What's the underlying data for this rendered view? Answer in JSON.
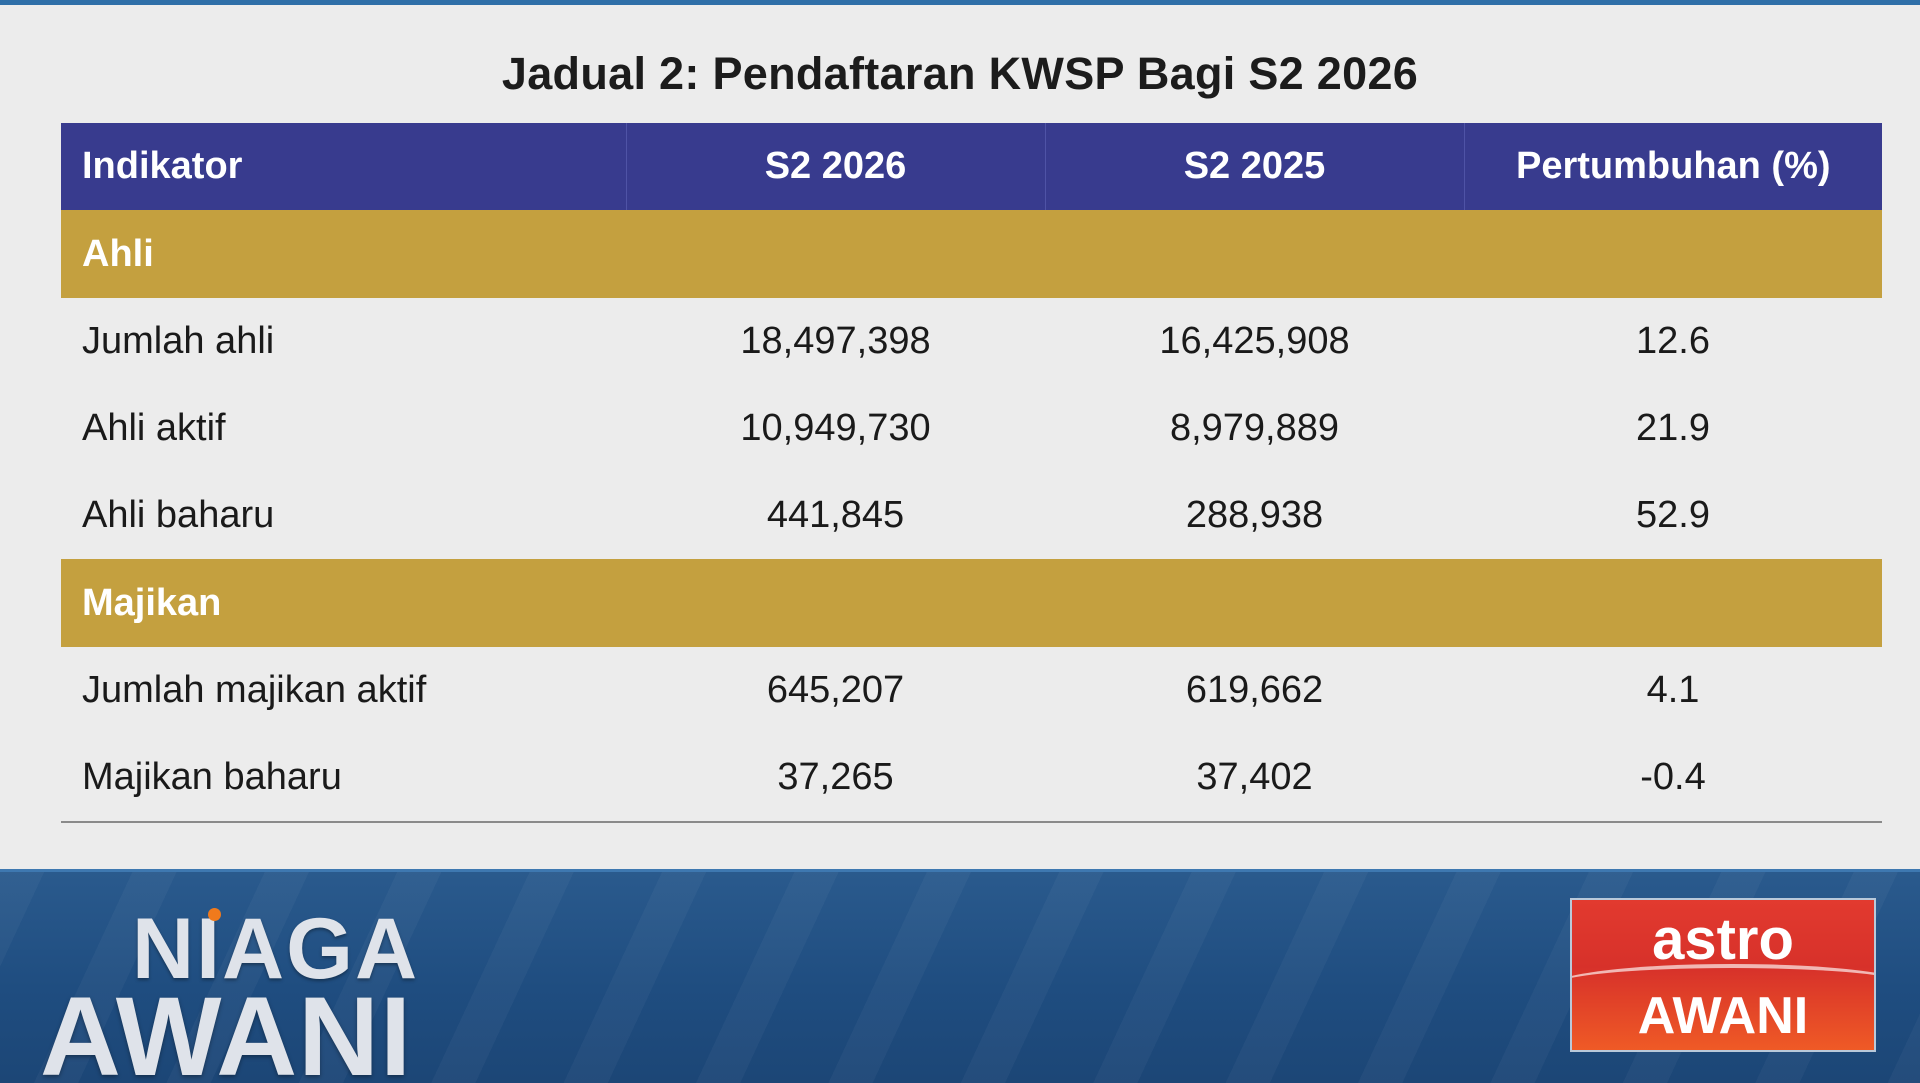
{
  "title": "Jadual 2: Pendaftaran KWSP Bagi S2 2026",
  "table": {
    "headers": [
      "Indikator",
      "S2 2026",
      "S2 2025",
      "Pertumbuhan (%)"
    ],
    "sections": [
      {
        "name": "Ahli",
        "rows": [
          [
            "Jumlah ahli",
            "18,497,398",
            "16,425,908",
            "12.6"
          ],
          [
            "Ahli aktif",
            "10,949,730",
            "8,979,889",
            "21.9"
          ],
          [
            "Ahli baharu",
            "441,845",
            "288,938",
            "52.9"
          ]
        ]
      },
      {
        "name": "Majikan",
        "rows": [
          [
            "Jumlah majikan aktif",
            "645,207",
            "619,662",
            "4.1"
          ],
          [
            "Majikan baharu",
            "37,265",
            "37,402",
            "-0.4"
          ]
        ]
      }
    ]
  },
  "branding": {
    "show_logo": {
      "line1": "NIAGA",
      "line2": "AWANI"
    },
    "channel_logo": {
      "line1": "astro",
      "line2": "AWANI"
    }
  },
  "colors": {
    "header_bg": "#383b8e",
    "section_bg": "#c4a03f",
    "page_bg": "#ececec",
    "ticker_bg": "#1f4d80",
    "channel_logo_bg": "#d7312a"
  }
}
